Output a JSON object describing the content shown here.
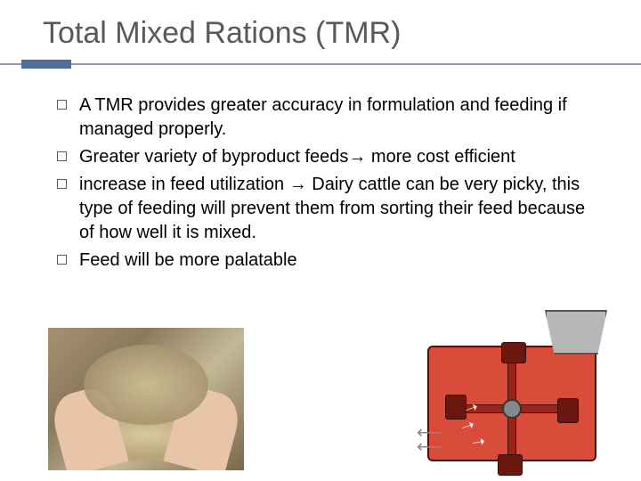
{
  "title": "Total Mixed Rations (TMR)",
  "accent_block_color": "#506e94",
  "rule_color": "#8c9bb0",
  "title_color": "#595959",
  "text_color": "#000000",
  "background_color": "#ffffff",
  "title_fontsize": 34,
  "bullet_fontsize": 20,
  "bullets": [
    "A TMR provides greater accuracy in formulation and feeding if managed properly.",
    "Greater variety of byproduct feeds→ more cost efficient",
    "increase in feed utilization → Dairy cattle can be very picky, this type of feeding will prevent them from sorting their feed because of how well it is mixed.",
    "Feed will be more palatable"
  ],
  "images": {
    "left": {
      "description": "hands-holding-mixed-feed",
      "dominant_colors": [
        "#a89070",
        "#c4b896",
        "#e8c4a8"
      ]
    },
    "right": {
      "description": "tmr-mixer-cutaway-diagram",
      "body_color": "#d94c3a",
      "body_border": "#4a0f0a",
      "hopper_color": "#b7b7b7",
      "blade_color": "#9a2418",
      "hub_color": "#888888"
    }
  }
}
